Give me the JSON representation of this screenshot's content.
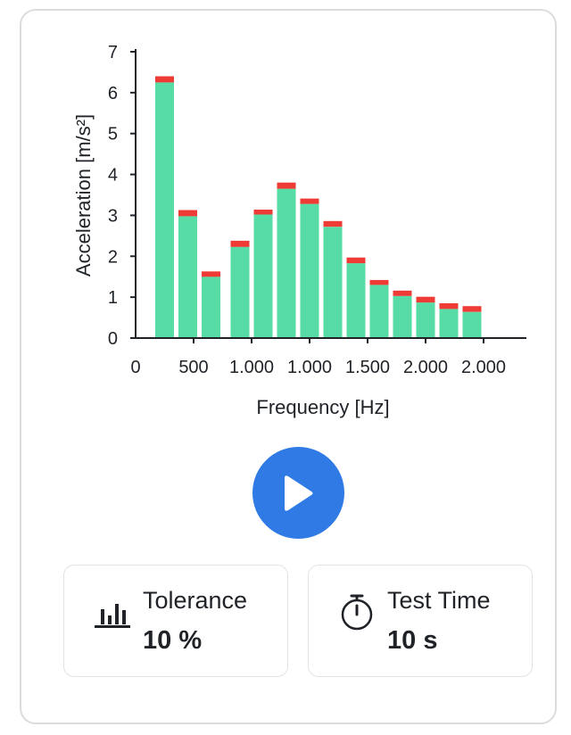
{
  "chart_data": {
    "type": "bar",
    "stacked": true,
    "xlabel": "Frequency [Hz]",
    "ylabel": "Acceleration [m/s²]",
    "ylim": [
      0,
      7
    ],
    "y_ticks": [
      "0",
      "1",
      "2",
      "3",
      "4",
      "5",
      "6",
      "7"
    ],
    "x_tick_labels": [
      "0",
      "500",
      "1.000",
      "1.000",
      "1.500",
      "2.000",
      "2.000"
    ],
    "grid": false,
    "legend": "none",
    "bar_centers_hz": [
      250,
      450,
      650,
      900,
      1100,
      1300,
      1500,
      1700,
      1900,
      2100,
      2300,
      2500,
      2700,
      2900
    ],
    "series": [
      {
        "color": "#57dca5",
        "values": [
          6.25,
          2.98,
          1.5,
          2.23,
          3.02,
          3.65,
          3.28,
          2.72,
          1.83,
          1.3,
          1.03,
          0.87,
          0.71,
          0.64
        ]
      },
      {
        "color": "#ef3b36",
        "values": [
          0.15,
          0.15,
          0.13,
          0.15,
          0.12,
          0.15,
          0.13,
          0.14,
          0.14,
          0.12,
          0.13,
          0.14,
          0.14,
          0.14
        ]
      }
    ],
    "axis_color": "#1f2328"
  },
  "controls": {
    "play_icon": "play-icon",
    "play_color": "#2f7ae5"
  },
  "stats": {
    "tolerance": {
      "icon": "bar-chart-icon",
      "label": "Tolerance",
      "value": "10 %"
    },
    "test_time": {
      "icon": "stopwatch-icon",
      "label": "Test Time",
      "value": "10 s"
    }
  }
}
